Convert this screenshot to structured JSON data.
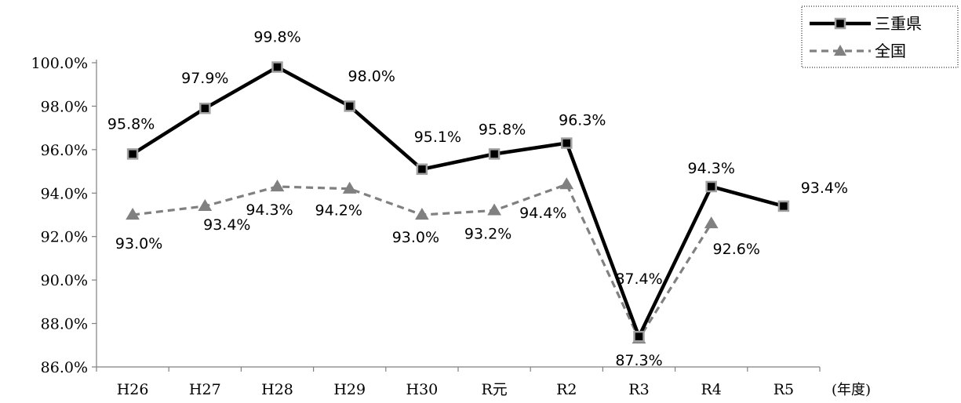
{
  "chart_data": {
    "type": "line",
    "categories": [
      "H26",
      "H27",
      "H28",
      "H29",
      "H30",
      "R元",
      "R2",
      "R3",
      "R4",
      "R5"
    ],
    "x_unit_label": "(年度)",
    "ylim": [
      86.0,
      100.0
    ],
    "yticks": [
      86.0,
      88.0,
      90.0,
      92.0,
      94.0,
      96.0,
      98.0,
      100.0
    ],
    "ytick_labels": [
      "86.0%",
      "88.0%",
      "90.0%",
      "92.0%",
      "94.0%",
      "96.0%",
      "98.0%",
      "100.0%"
    ],
    "legend_position": "top-right",
    "series": [
      {
        "name": "三重県",
        "values": [
          95.8,
          97.9,
          99.8,
          98.0,
          95.1,
          95.8,
          96.3,
          87.4,
          94.3,
          93.4
        ],
        "labels": [
          "95.8%",
          "97.9%",
          "99.8%",
          "98.0%",
          "95.1%",
          "95.8%",
          "96.3%",
          "87.4%",
          "94.3%",
          "93.4%"
        ],
        "color": "#000000",
        "marker": "square"
      },
      {
        "name": "全国",
        "values": [
          93.0,
          93.4,
          94.3,
          94.2,
          93.0,
          93.2,
          94.4,
          87.3,
          92.6,
          null
        ],
        "labels": [
          "93.0%",
          "93.4%",
          "94.3%",
          "94.2%",
          "93.0%",
          "93.2%",
          "94.4%",
          "87.3%",
          "92.6%",
          null
        ],
        "color": "#808080",
        "marker": "triangle"
      }
    ]
  }
}
